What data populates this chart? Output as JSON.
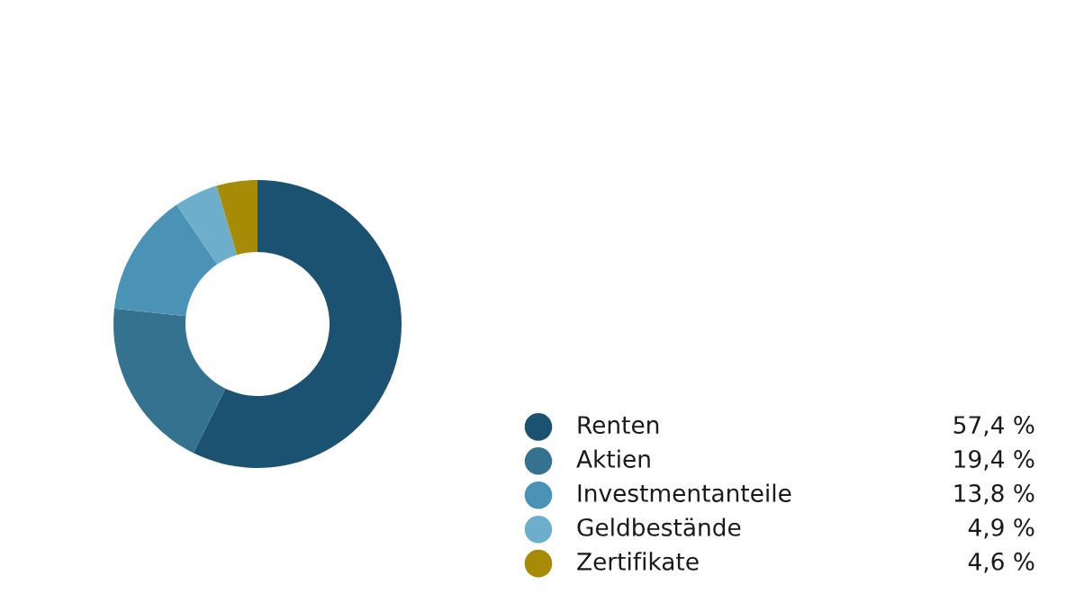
{
  "chart_data": {
    "type": "donut",
    "categories": [
      "Renten",
      "Aktien",
      "Investmentanteile",
      "Geldbestände",
      "Zertifikate"
    ],
    "values": [
      57.4,
      19.4,
      13.8,
      4.9,
      4.6
    ],
    "colors": [
      "#1b5272",
      "#35728f",
      "#4a92b6",
      "#6eaecd",
      "#a68c06"
    ],
    "value_labels": [
      "57,4 %",
      "19,4 %",
      "13,8 %",
      "4,9 %",
      "4,6 %"
    ],
    "legend": "bottom right"
  }
}
